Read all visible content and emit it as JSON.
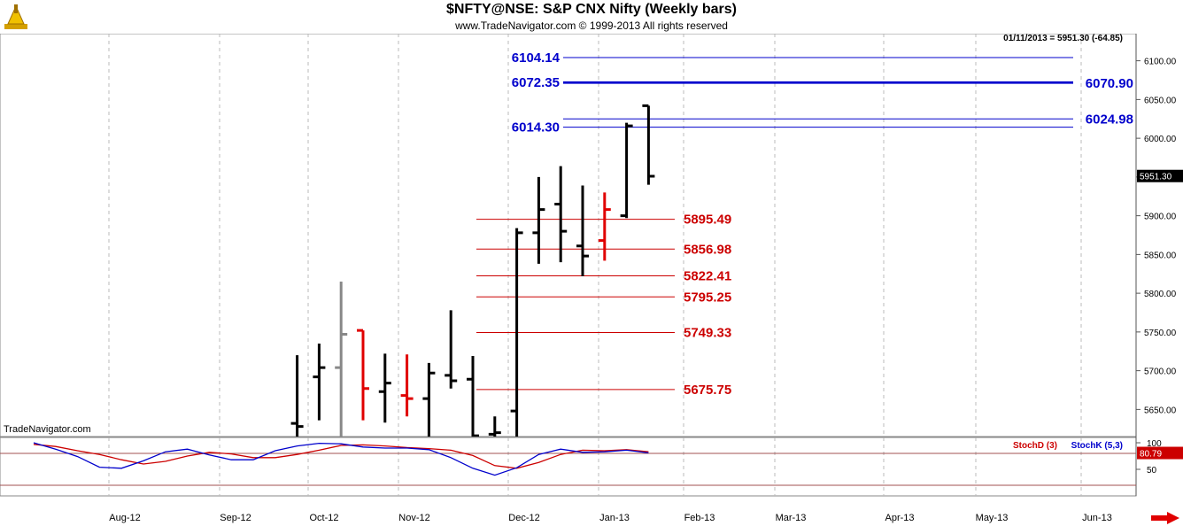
{
  "header": {
    "title": "$NFTY@NSE:  S&P CNX Nifty  (Weekly bars)",
    "subtitle": "www.TradeNavigator.com © 1999-2013 All rights reserved"
  },
  "colors": {
    "up_bar": "#000000",
    "down_bar": "#e00000",
    "neutral_bar": "#888888",
    "resistance": "#0000cc",
    "support": "#cc0000",
    "stoch_d": "#cc0000",
    "stoch_k": "#0000cc",
    "grid": "#bbbbbb"
  },
  "chart_data": [
    {
      "type": "ohlc",
      "info_label": "01/11/2013 = 5951.30 (-64.85)",
      "last_price_tag": "5951.30",
      "watermark": "TradeNavigator.com",
      "ylim": [
        5615,
        6135
      ],
      "y_ticks": [
        "5650.00",
        "5700.00",
        "5750.00",
        "5800.00",
        "5850.00",
        "5900.00",
        "5950.00",
        "6000.00",
        "6050.00",
        "6100.00"
      ],
      "x_ticks": [
        "Aug-12",
        "Sep-12",
        "Oct-12",
        "Nov-12",
        "Dec-12",
        "Jan-13",
        "Feb-13",
        "Mar-13",
        "Apr-13",
        "May-13",
        "Jun-13"
      ],
      "bars": [
        {
          "w": 27,
          "o": 5632,
          "h": 5720,
          "l": 5575,
          "c": 5628,
          "col": "up"
        },
        {
          "w": 28,
          "o": 5692,
          "h": 5735,
          "l": 5636,
          "c": 5704,
          "col": "up"
        },
        {
          "w": 29,
          "o": 5704,
          "h": 5815,
          "l": 5600,
          "c": 5747,
          "col": "neutral"
        },
        {
          "w": 30,
          "o": 5752,
          "h": 5752,
          "l": 5636,
          "c": 5677,
          "col": "down"
        },
        {
          "w": 31,
          "o": 5673,
          "h": 5722,
          "l": 5633,
          "c": 5684,
          "col": "up"
        },
        {
          "w": 32,
          "o": 5668,
          "h": 5721,
          "l": 5641,
          "c": 5664,
          "col": "down"
        },
        {
          "w": 33,
          "o": 5664,
          "h": 5710,
          "l": 5590,
          "c": 5697,
          "col": "up"
        },
        {
          "w": 34,
          "o": 5694,
          "h": 5778,
          "l": 5677,
          "c": 5687,
          "col": "up"
        },
        {
          "w": 35,
          "o": 5689,
          "h": 5719,
          "l": 5600,
          "c": 5616,
          "col": "up"
        },
        {
          "w": 36,
          "o": 5618,
          "h": 5641,
          "l": 5555,
          "c": 5620,
          "col": "up"
        },
        {
          "w": 37,
          "o": 5648,
          "h": 5884,
          "l": 5600,
          "c": 5878,
          "col": "up"
        },
        {
          "w": 38,
          "o": 5878,
          "h": 5950,
          "l": 5838,
          "c": 5908,
          "col": "up"
        },
        {
          "w": 39,
          "o": 5915,
          "h": 5964,
          "l": 5840,
          "c": 5880,
          "col": "up"
        },
        {
          "w": 40,
          "o": 5861,
          "h": 5939,
          "l": 5822,
          "c": 5848,
          "col": "up"
        },
        {
          "w": 41,
          "o": 5868,
          "h": 5930,
          "l": 5842,
          "c": 5908,
          "col": "down"
        },
        {
          "w": 42,
          "o": 5900,
          "h": 6020,
          "l": 5897,
          "c": 6016,
          "col": "up"
        },
        {
          "w": 43,
          "o": 6042,
          "h": 6042,
          "l": 5940,
          "c": 5951,
          "col": "up"
        }
      ],
      "levels": [
        {
          "value": 6104.14,
          "label": "6104.14",
          "style": "resistance",
          "side": "left",
          "w0": 41,
          "w1": 64
        },
        {
          "value": 6072.35,
          "label": "6072.35",
          "style": "resistance",
          "side": "left",
          "w0": 41,
          "w1": 64,
          "heavy": true
        },
        {
          "value": 6070.9,
          "label": "6070.90",
          "style": "resistance",
          "side": "right",
          "w0": 41,
          "w1": 64
        },
        {
          "value": 6024.98,
          "label": "6024.98",
          "style": "resistance",
          "side": "right",
          "w0": 41,
          "w1": 64,
          "thin": true
        },
        {
          "value": 6014.3,
          "label": "6014.30",
          "style": "resistance",
          "side": "left",
          "w0": 41,
          "w1": 64
        },
        {
          "value": 5895.49,
          "label": "5895.49",
          "style": "support",
          "side": "mid",
          "w0": 36,
          "w1": 46
        },
        {
          "value": 5856.98,
          "label": "5856.98",
          "style": "support",
          "side": "mid",
          "w0": 36,
          "w1": 46
        },
        {
          "value": 5822.41,
          "label": "5822.41",
          "style": "support",
          "side": "mid",
          "w0": 36,
          "w1": 46
        },
        {
          "value": 5795.25,
          "label": "5795.25",
          "style": "support",
          "side": "mid",
          "w0": 36,
          "w1": 46
        },
        {
          "value": 5749.33,
          "label": "5749.33",
          "style": "support",
          "side": "mid",
          "w0": 36,
          "w1": 46
        },
        {
          "value": 5675.75,
          "label": "5675.75",
          "style": "support",
          "side": "mid",
          "w0": 36,
          "w1": 46
        }
      ]
    },
    {
      "type": "line",
      "ylim": [
        0,
        110
      ],
      "y_ticks": [
        "50",
        "100"
      ],
      "last_value_tag": "80.79",
      "overbought": 80,
      "oversold": 20,
      "series": [
        {
          "name": "StochD (3)",
          "color": "stoch_d",
          "values": [
            [
              15,
              97
            ],
            [
              16,
              93
            ],
            [
              17,
              85
            ],
            [
              18,
              78
            ],
            [
              19,
              68
            ],
            [
              20,
              60
            ],
            [
              21,
              65
            ],
            [
              22,
              75
            ],
            [
              23,
              82
            ],
            [
              24,
              79
            ],
            [
              25,
              72
            ],
            [
              26,
              72
            ],
            [
              27,
              78
            ],
            [
              28,
              86
            ],
            [
              29,
              95
            ],
            [
              30,
              96
            ],
            [
              31,
              94
            ],
            [
              32,
              91
            ],
            [
              33,
              89
            ],
            [
              34,
              86
            ],
            [
              35,
              76
            ],
            [
              36,
              57
            ],
            [
              37,
              52
            ],
            [
              38,
              63
            ],
            [
              39,
              78
            ],
            [
              40,
              86
            ],
            [
              41,
              85
            ],
            [
              42,
              87
            ],
            [
              43,
              83
            ]
          ]
        },
        {
          "name": "StochK (5,3)",
          "color": "stoch_k",
          "values": [
            [
              15,
              100
            ],
            [
              16,
              88
            ],
            [
              17,
              74
            ],
            [
              18,
              54
            ],
            [
              19,
              52
            ],
            [
              20,
              66
            ],
            [
              21,
              83
            ],
            [
              22,
              88
            ],
            [
              23,
              77
            ],
            [
              24,
              68
            ],
            [
              25,
              68
            ],
            [
              26,
              85
            ],
            [
              27,
              94
            ],
            [
              28,
              99
            ],
            [
              29,
              98
            ],
            [
              30,
              92
            ],
            [
              31,
              90
            ],
            [
              32,
              90
            ],
            [
              33,
              87
            ],
            [
              34,
              72
            ],
            [
              35,
              52
            ],
            [
              36,
              39
            ],
            [
              37,
              53
            ],
            [
              38,
              78
            ],
            [
              39,
              88
            ],
            [
              40,
              82
            ],
            [
              41,
              83
            ],
            [
              42,
              86
            ],
            [
              43,
              81
            ]
          ]
        }
      ]
    }
  ]
}
